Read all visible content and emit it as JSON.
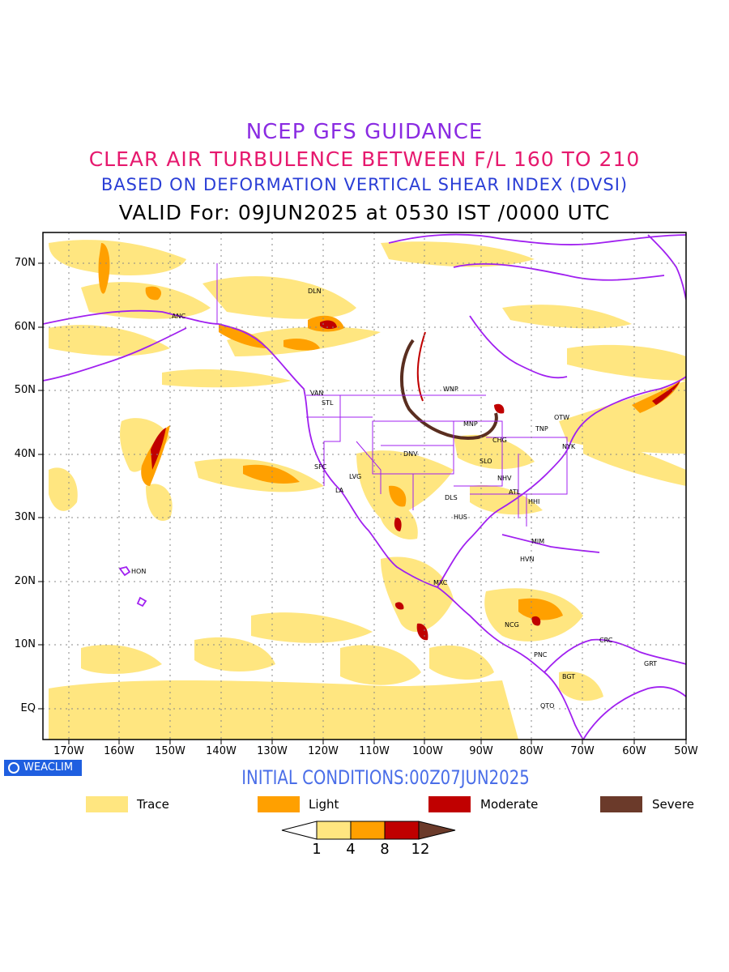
{
  "titles": {
    "line1": "NCEP GFS GUIDANCE",
    "line2": "CLEAR AIR TURBULENCE BETWEEN F/L 160 TO 210",
    "line3": "BASED ON DEFORMATION VERTICAL SHEAR INDEX (DVSI)",
    "line4": "VALID For: 09JUN2025 at 0530 IST /0000 UTC"
  },
  "axes": {
    "lat_labels": [
      "70N",
      "60N",
      "50N",
      "40N",
      "30N",
      "20N",
      "10N",
      "EQ"
    ],
    "lon_labels": [
      "170W",
      "160W",
      "150W",
      "140W",
      "130W",
      "120W",
      "110W",
      "100W",
      "90W",
      "80W",
      "70W",
      "60W",
      "50W"
    ]
  },
  "stations": [
    {
      "code": "DLN"
    },
    {
      "code": "ANC"
    },
    {
      "code": "VAN"
    },
    {
      "code": "STL"
    },
    {
      "code": "WNP"
    },
    {
      "code": "MNP"
    },
    {
      "code": "TNP"
    },
    {
      "code": "OTW"
    },
    {
      "code": "NYK"
    },
    {
      "code": "CHG"
    },
    {
      "code": "DNV"
    },
    {
      "code": "SLO"
    },
    {
      "code": "SFC"
    },
    {
      "code": "LVG"
    },
    {
      "code": "NHV"
    },
    {
      "code": "LA"
    },
    {
      "code": "ATL"
    },
    {
      "code": "DLS"
    },
    {
      "code": "HHI"
    },
    {
      "code": "HUS"
    },
    {
      "code": "MIM"
    },
    {
      "code": "HVN"
    },
    {
      "code": "HON"
    },
    {
      "code": "MXC"
    },
    {
      "code": "NCG"
    },
    {
      "code": "CRC"
    },
    {
      "code": "PNC"
    },
    {
      "code": "GRT"
    },
    {
      "code": "BGT"
    },
    {
      "code": "QTO"
    }
  ],
  "badge": "WEACLIM",
  "initial_conditions": "INITIAL CONDITIONS:00Z07JUN2025",
  "legend": [
    {
      "label": "Trace",
      "color": "#ffe680"
    },
    {
      "label": "Light",
      "color": "#ffa000"
    },
    {
      "label": "Moderate",
      "color": "#c00000"
    },
    {
      "label": "Severe",
      "color": "#6b3a2a"
    }
  ],
  "colorbar": {
    "ticks": [
      "1",
      "4",
      "8",
      "12"
    ],
    "colors": [
      "#ffffff",
      "#ffe680",
      "#ffa000",
      "#c00000",
      "#6b3a2a"
    ]
  },
  "colors": {
    "coastline": "#a020f0",
    "jet_band": "#5a2e20",
    "grid": "#888888"
  }
}
